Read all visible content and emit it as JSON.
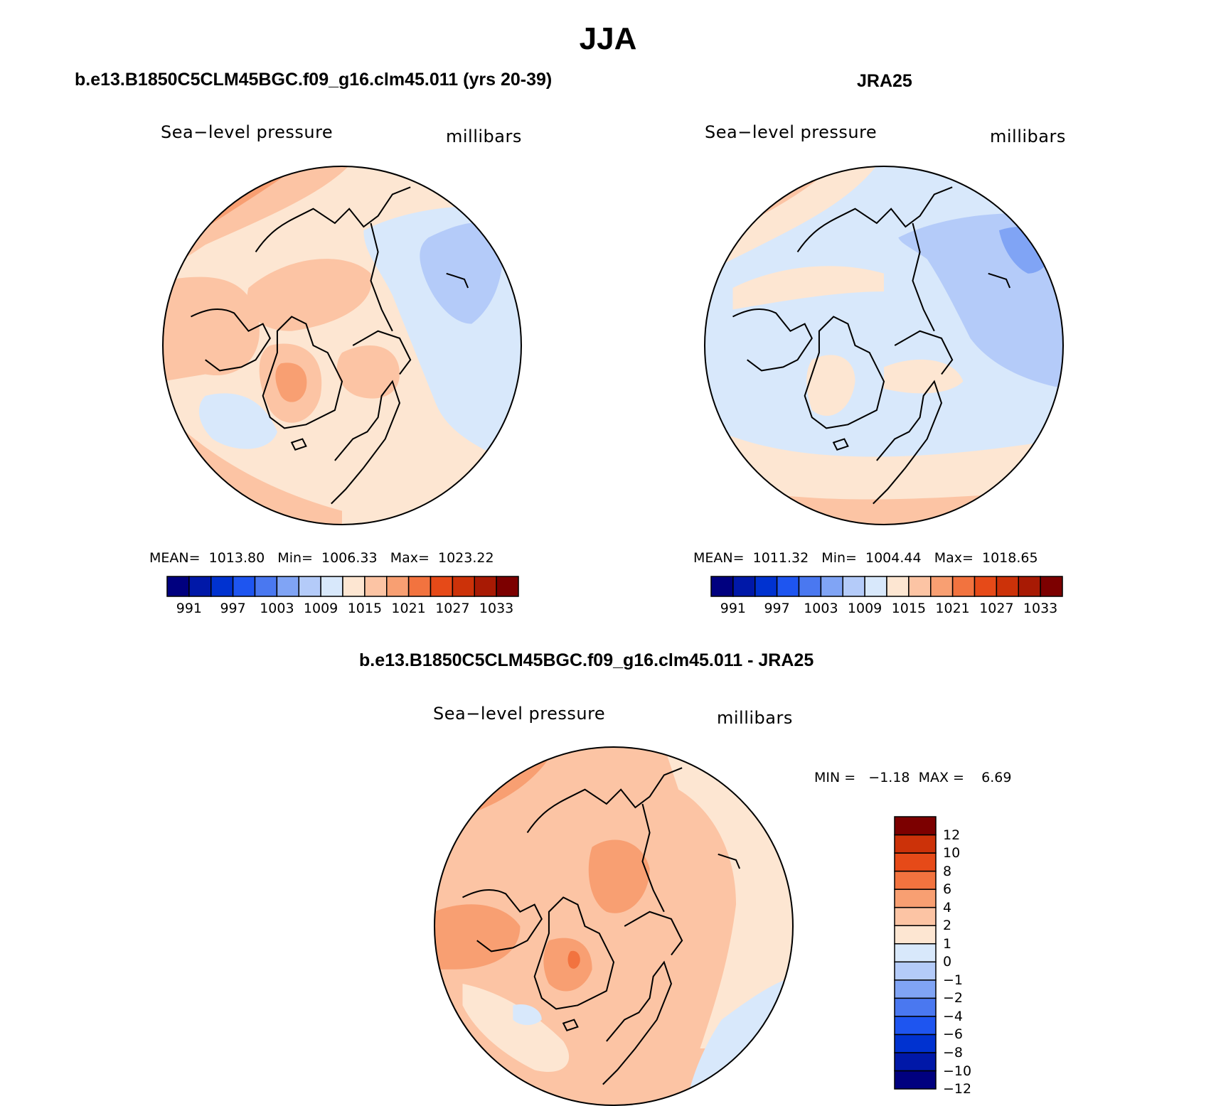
{
  "figure": {
    "title": "JJA"
  },
  "panels": [
    {
      "id": "model",
      "case_title": "b.e13.B1850C5CLM45BGC.f09_g16.clm45.011 (yrs 20-39)",
      "left_label": "Sea−level pressure",
      "right_label": "millibars",
      "stats": "MEAN=  1013.80   Min=  1006.33   Max=  1023.22",
      "background_level": 1015
    },
    {
      "id": "obs",
      "case_title": "JRA25",
      "left_label": "Sea−level pressure",
      "right_label": "millibars",
      "stats": "MEAN=  1011.32   Min=  1004.44   Max=  1018.65",
      "background_level": 1009
    },
    {
      "id": "diff",
      "case_title": "b.e13.B1850C5CLM45BGC.f09_g16.clm45.011 - JRA25",
      "left_label": "Sea−level pressure",
      "right_label": "millibars",
      "stats": "MIN =   −1.18  MAX =    6.69",
      "background_level": 2
    }
  ],
  "colorbar_abs": {
    "colors": [
      "#00007f",
      "#0018a8",
      "#0032d0",
      "#1e55f0",
      "#4a78f0",
      "#80a4f5",
      "#b4cbf9",
      "#d8e8fb",
      "#fde6d2",
      "#fcc4a4",
      "#f89f72",
      "#f2733f",
      "#e64a18",
      "#cc3209",
      "#a81a04",
      "#7c0000"
    ],
    "tick_labels": [
      "991",
      "997",
      "1003",
      "1009",
      "1015",
      "1021",
      "1027",
      "1033"
    ]
  },
  "colorbar_diff": {
    "colors_bottom_to_top": [
      "#00007f",
      "#0018a8",
      "#0032d0",
      "#1e55f0",
      "#4a78f0",
      "#80a4f5",
      "#b4cbf9",
      "#d8e8fb",
      "#fde6d2",
      "#fcc4a4",
      "#f89f72",
      "#f2733f",
      "#e64a18",
      "#cc3209",
      "#7c0000"
    ],
    "tick_labels_bottom_to_top": [
      "−12",
      "−10",
      "−8",
      "−6",
      "−4",
      "−2",
      "−1",
      "0",
      "1",
      "2",
      "4",
      "6",
      "8",
      "10",
      "12"
    ]
  }
}
